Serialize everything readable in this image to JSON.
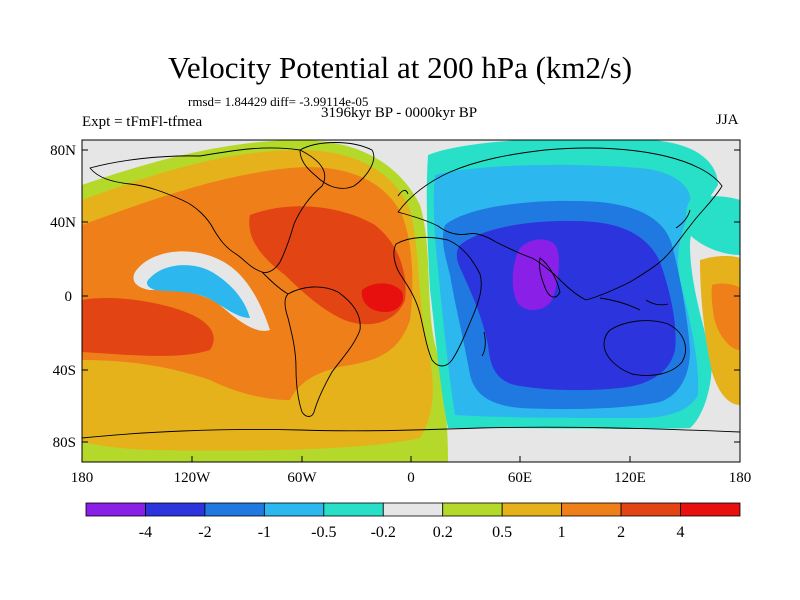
{
  "header": {
    "title": "Velocity Potential at 200 hPa (km2/s)",
    "stats": "rmsd= 1.84429 diff= -3.99114e-05",
    "period": "3196kyr BP - 0000kyr BP",
    "experiment": "Expt = tFmFl-tfmea",
    "season": "JJA"
  },
  "axes": {
    "lat_labels": [
      "80N",
      "40N",
      "0",
      "40S",
      "80S"
    ],
    "lon_labels": [
      "180",
      "120W",
      "60W",
      "0",
      "60E",
      "120E",
      "180"
    ]
  },
  "colorbar": {
    "labels": [
      "-4",
      "-2",
      "-1",
      "-0.5",
      "-0.2",
      "0.2",
      "0.5",
      "1",
      "2",
      "4"
    ],
    "colors": [
      "#8a1fe8",
      "#2b34dd",
      "#1f79e0",
      "#2cb8ef",
      "#28e0c8",
      "#e6e6e6",
      "#b4d92a",
      "#e6b21b",
      "#ef7f19",
      "#e24414",
      "#e80f0f"
    ]
  },
  "colors": {
    "land_outline": "#000000",
    "no_data": "#e6e6e6"
  }
}
